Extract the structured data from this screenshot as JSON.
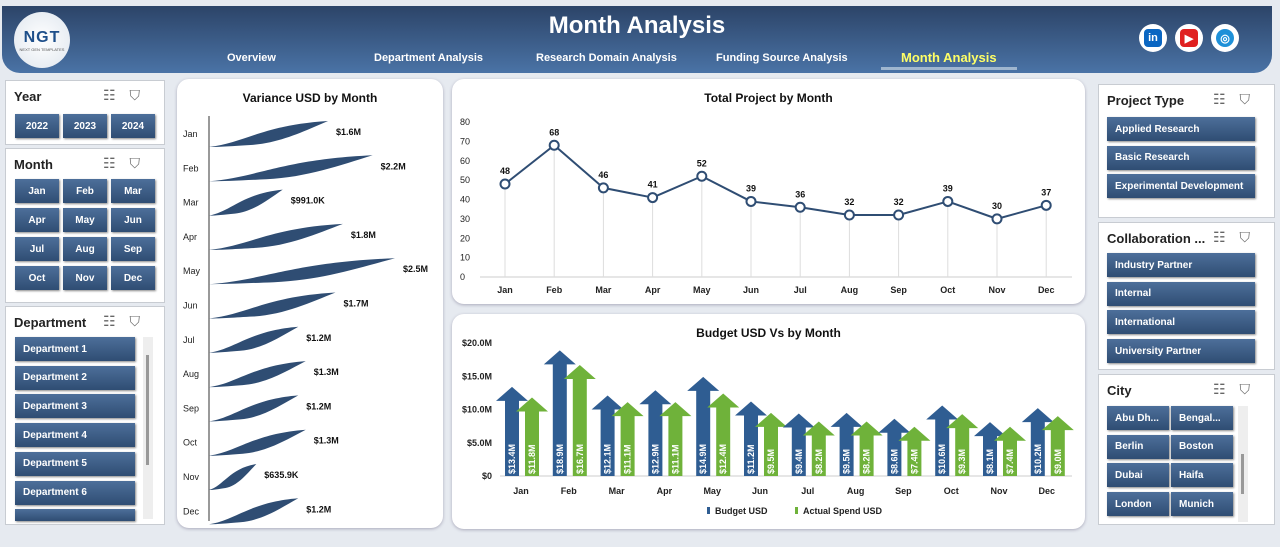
{
  "header": {
    "title": "Month Analysis",
    "logo": "NGT",
    "logo_sub": "NEXT GEN TEMPLATES",
    "nav": [
      "Overview",
      "Department Analysis",
      "Research Domain Analysis",
      "Funding Source Analysis",
      "Month Analysis"
    ],
    "active_nav": "Month Analysis",
    "social": [
      {
        "icon": "linkedin-icon",
        "label": "in",
        "color": "#0a66c2"
      },
      {
        "icon": "youtube-icon",
        "label": "▶",
        "color": "#e02020"
      },
      {
        "icon": "globe-icon",
        "label": "◎",
        "color": "#1e90d8"
      }
    ]
  },
  "slicers": {
    "year": {
      "title": "Year",
      "items": [
        "2022",
        "2023",
        "2024"
      ]
    },
    "month": {
      "title": "Month",
      "items": [
        "Jan",
        "Feb",
        "Mar",
        "Apr",
        "May",
        "Jun",
        "Jul",
        "Aug",
        "Sep",
        "Oct",
        "Nov",
        "Dec"
      ]
    },
    "department": {
      "title": "Department",
      "items": [
        "Department 1",
        "Department 2",
        "Department 3",
        "Department 4",
        "Department 5",
        "Department 6",
        ""
      ]
    },
    "project_type": {
      "title": "Project Type",
      "items": [
        "Applied Research",
        "Basic Research",
        "Experimental Development"
      ]
    },
    "collaboration": {
      "title": "Collaboration ...",
      "items": [
        "Industry Partner",
        "Internal",
        "International",
        "University Partner"
      ]
    },
    "city": {
      "title": "City",
      "items": [
        "Abu Dh...",
        "Bengal...",
        "Berlin",
        "Boston",
        "Dubai",
        "Haifa",
        "London",
        "Munich"
      ]
    }
  },
  "chart_data": [
    {
      "type": "bar",
      "title": "Variance USD by Month",
      "categories": [
        "Jan",
        "Feb",
        "Mar",
        "Apr",
        "May",
        "Jun",
        "Jul",
        "Aug",
        "Sep",
        "Oct",
        "Nov",
        "Dec"
      ],
      "values": [
        1600000,
        2200000,
        991000,
        1800000,
        2500000,
        1700000,
        1200000,
        1300000,
        1200000,
        1300000,
        635900,
        1200000
      ],
      "labels": [
        "$1.6M",
        "$2.2M",
        "$991.0K",
        "$1.8M",
        "$2.5M",
        "$1.7M",
        "$1.2M",
        "$1.3M",
        "$1.2M",
        "$1.3M",
        "$635.9K",
        "$1.2M"
      ],
      "orientation": "horizontal",
      "color": "#2f4d73"
    },
    {
      "type": "line",
      "title": "Total Project by Month",
      "categories": [
        "Jan",
        "Feb",
        "Mar",
        "Apr",
        "May",
        "Jun",
        "Jul",
        "Aug",
        "Sep",
        "Oct",
        "Nov",
        "Dec"
      ],
      "values": [
        48,
        68,
        46,
        41,
        52,
        39,
        36,
        32,
        32,
        39,
        30,
        37
      ],
      "ylim": [
        0,
        80
      ],
      "yticks": [
        "0",
        "10",
        "20",
        "30",
        "40",
        "50",
        "60",
        "70",
        "80"
      ],
      "grid": "vertical",
      "color": "#2f4d73"
    },
    {
      "type": "bar",
      "title": "Budget USD Vs  by Month",
      "categories": [
        "Jan",
        "Feb",
        "Mar",
        "Apr",
        "May",
        "Jun",
        "Jul",
        "Aug",
        "Sep",
        "Oct",
        "Nov",
        "Dec"
      ],
      "ylim": [
        0,
        20
      ],
      "yticks": [
        "$0",
        "$5.0M",
        "$10.0M",
        "$15.0M",
        "$20.0M"
      ],
      "legend": "bottom",
      "series": [
        {
          "name": "Budget USD",
          "color": "#2f5d92",
          "values": [
            13.4,
            18.9,
            12.1,
            12.9,
            14.9,
            11.2,
            9.4,
            9.5,
            8.6,
            10.6,
            8.1,
            10.2
          ],
          "labels": [
            "$13.4M",
            "$18.9M",
            "$12.1M",
            "$12.9M",
            "$14.9M",
            "$11.2M",
            "$9.4M",
            "$9.5M",
            "$8.6M",
            "$10.6M",
            "$8.1M",
            "$10.2M"
          ]
        },
        {
          "name": "Actual Spend USD",
          "color": "#6fb23a",
          "values": [
            11.8,
            16.7,
            11.1,
            11.1,
            12.4,
            9.5,
            8.2,
            8.2,
            7.4,
            9.3,
            7.4,
            9.0
          ],
          "labels": [
            "$11.8M",
            "$16.7M",
            "$11.1M",
            "$11.1M",
            "$12.4M",
            "$9.5M",
            "$8.2M",
            "$8.2M",
            "$7.4M",
            "$9.3M",
            "$7.4M",
            "$9.0M"
          ]
        }
      ]
    }
  ]
}
